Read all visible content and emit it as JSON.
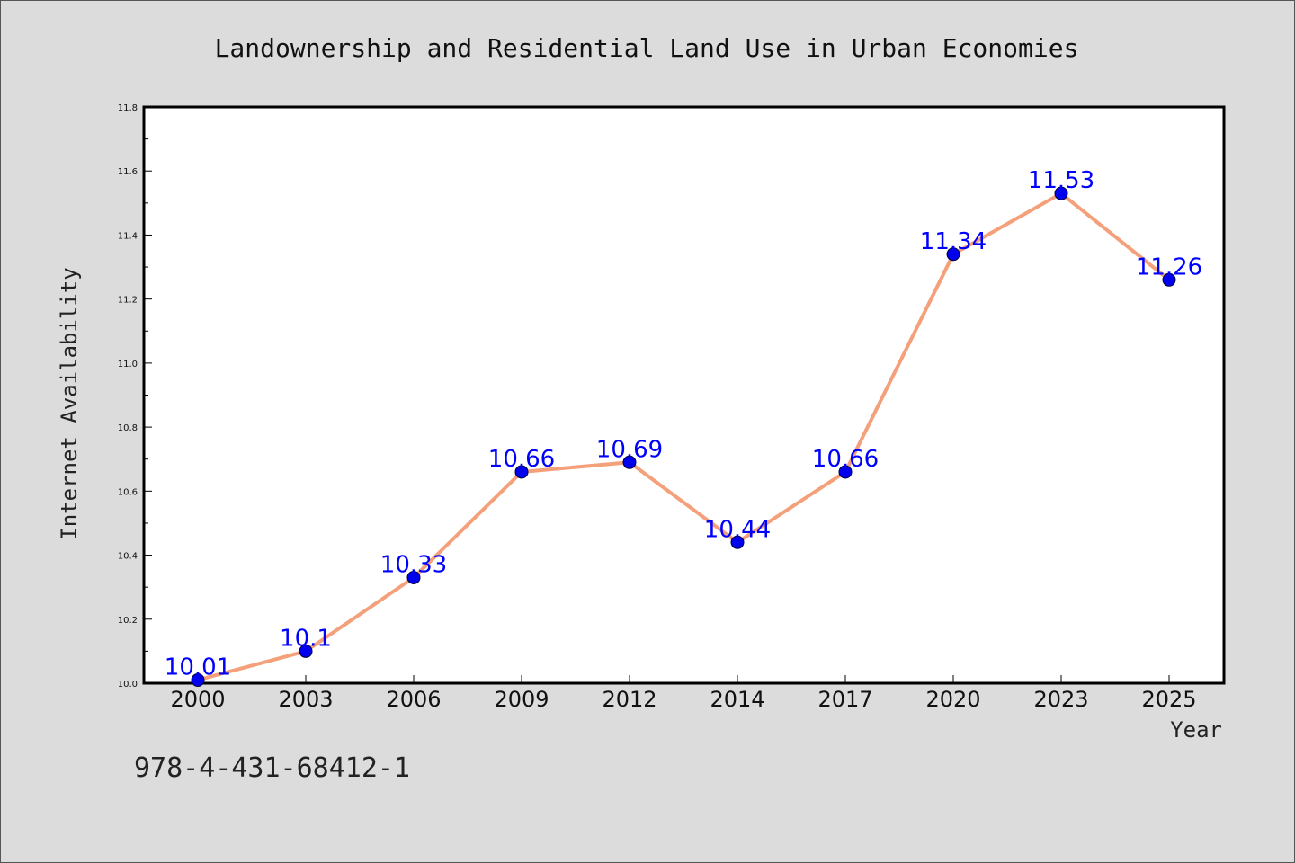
{
  "chart_data": {
    "type": "line",
    "title": "Landownership and Residential Land Use in Urban Economies",
    "xlabel": "Year",
    "ylabel": "Internet Availability",
    "categories": [
      "2000",
      "2003",
      "2006",
      "2009",
      "2012",
      "2014",
      "2017",
      "2020",
      "2023",
      "2025"
    ],
    "series": [
      {
        "values": [
          10.01,
          10.1,
          10.33,
          10.66,
          10.69,
          10.44,
          10.66,
          11.34,
          11.53,
          11.26
        ],
        "data_labels": [
          "10.01",
          "10.1",
          "10.33",
          "10.66",
          "10.69",
          "10.44",
          "10.66",
          "11.34",
          "11.53",
          "11.26"
        ],
        "line_color": "#f4a07a",
        "marker_color": "#0000ee",
        "label_color": "#0000ff"
      }
    ],
    "ylim": [
      10.0,
      11.8
    ],
    "yticks": [
      "10.0",
      "10.2",
      "10.4",
      "10.6",
      "10.8",
      "11.0",
      "11.2",
      "11.4",
      "11.6",
      "11.8"
    ],
    "grid": false,
    "legend": "none"
  },
  "footer": {
    "isbn": "978-4-431-68412-1"
  },
  "colors": {
    "background": "#dcdcdc",
    "plot_background": "#ffffff",
    "axis": "#000000"
  }
}
